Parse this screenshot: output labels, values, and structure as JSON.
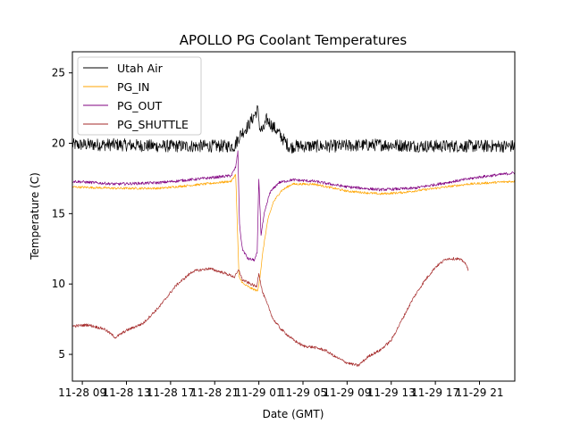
{
  "chart_data": {
    "type": "line",
    "title": "APOLLO PG Coolant Temperatures",
    "xlabel": "Date (GMT)",
    "ylabel": "Temperature (C)",
    "x_unit": "hours since 11-28 00:00 GMT",
    "xlim": [
      8.1,
      48.2
    ],
    "ylim": [
      3.1,
      26.5
    ],
    "grid": false,
    "legend_position": "top-left",
    "x_ticks": [
      {
        "value": 9,
        "label": "11-28 09"
      },
      {
        "value": 13,
        "label": "11-28 13"
      },
      {
        "value": 17,
        "label": "11-28 17"
      },
      {
        "value": 21,
        "label": "11-28 21"
      },
      {
        "value": 25,
        "label": "11-29 01"
      },
      {
        "value": 29,
        "label": "11-29 05"
      },
      {
        "value": 33,
        "label": "11-29 09"
      },
      {
        "value": 37,
        "label": "11-29 13"
      },
      {
        "value": 41,
        "label": "11-29 17"
      },
      {
        "value": 45,
        "label": "11-29 21"
      }
    ],
    "y_ticks": [
      {
        "value": 5,
        "label": "5"
      },
      {
        "value": 10,
        "label": "10"
      },
      {
        "value": 15,
        "label": "15"
      },
      {
        "value": 20,
        "label": "20"
      },
      {
        "value": 25,
        "label": "25"
      }
    ],
    "series": [
      {
        "name": "Utah Air",
        "color": "#000000",
        "noise": 0.45,
        "points": [
          [
            8.1,
            19.9
          ],
          [
            12,
            19.9
          ],
          [
            16,
            19.8
          ],
          [
            20,
            19.8
          ],
          [
            22.8,
            19.8
          ],
          [
            23.3,
            20.6
          ],
          [
            24,
            21.2
          ],
          [
            24.6,
            22.0
          ],
          [
            24.9,
            22.4
          ],
          [
            25.1,
            21.0
          ],
          [
            25.4,
            20.9
          ],
          [
            25.7,
            21.7
          ],
          [
            26.5,
            21.0
          ],
          [
            27.2,
            20.3
          ],
          [
            27.8,
            19.7
          ],
          [
            28.3,
            19.8
          ],
          [
            32,
            19.8
          ],
          [
            36,
            19.9
          ],
          [
            40,
            19.8
          ],
          [
            44,
            19.8
          ],
          [
            48.2,
            19.8
          ]
        ]
      },
      {
        "name": "PG_IN",
        "color": "#FFA500",
        "noise": 0.08,
        "points": [
          [
            8.1,
            16.9
          ],
          [
            12,
            16.8
          ],
          [
            16,
            16.8
          ],
          [
            20,
            17.1
          ],
          [
            22.5,
            17.3
          ],
          [
            22.9,
            17.8
          ],
          [
            23.2,
            10.5
          ],
          [
            23.6,
            10.0
          ],
          [
            24.3,
            9.7
          ],
          [
            24.9,
            9.5
          ],
          [
            25.1,
            10.5
          ],
          [
            25.4,
            12.5
          ],
          [
            25.8,
            14.5
          ],
          [
            26.3,
            15.8
          ],
          [
            27,
            16.6
          ],
          [
            28,
            17.1
          ],
          [
            30,
            17.1
          ],
          [
            33,
            16.6
          ],
          [
            36,
            16.4
          ],
          [
            38,
            16.5
          ],
          [
            41,
            16.8
          ],
          [
            44,
            17.1
          ],
          [
            48.2,
            17.3
          ]
        ]
      },
      {
        "name": "PG_OUT",
        "color": "#800080",
        "noise": 0.1,
        "points": [
          [
            8.1,
            17.3
          ],
          [
            12,
            17.1
          ],
          [
            16,
            17.2
          ],
          [
            20,
            17.5
          ],
          [
            22.5,
            17.7
          ],
          [
            22.9,
            18.3
          ],
          [
            23.1,
            19.4
          ],
          [
            23.25,
            14.2
          ],
          [
            23.5,
            12.5
          ],
          [
            24,
            11.8
          ],
          [
            24.6,
            11.7
          ],
          [
            24.85,
            12.2
          ],
          [
            25.0,
            17.5
          ],
          [
            25.2,
            13.5
          ],
          [
            25.5,
            15.0
          ],
          [
            26,
            16.5
          ],
          [
            26.8,
            17.2
          ],
          [
            28,
            17.4
          ],
          [
            30,
            17.3
          ],
          [
            33,
            16.9
          ],
          [
            36,
            16.7
          ],
          [
            39,
            16.8
          ],
          [
            42,
            17.2
          ],
          [
            45,
            17.6
          ],
          [
            48.2,
            17.9
          ]
        ]
      },
      {
        "name": "PG_SHUTTLE",
        "color": "#A52A2A",
        "noise": 0.1,
        "points": [
          [
            8.1,
            7.0
          ],
          [
            9.5,
            7.1
          ],
          [
            11,
            6.8
          ],
          [
            12,
            6.2
          ],
          [
            13,
            6.7
          ],
          [
            14.5,
            7.2
          ],
          [
            16,
            8.4
          ],
          [
            17.5,
            9.9
          ],
          [
            19,
            10.9
          ],
          [
            20.5,
            11.1
          ],
          [
            21.8,
            10.8
          ],
          [
            22.8,
            10.5
          ],
          [
            23.2,
            11.0
          ],
          [
            23.5,
            10.3
          ],
          [
            24,
            10.1
          ],
          [
            24.8,
            9.8
          ],
          [
            25.0,
            10.8
          ],
          [
            25.3,
            9.5
          ],
          [
            25.8,
            8.5
          ],
          [
            26.3,
            7.5
          ],
          [
            27,
            6.8
          ],
          [
            28,
            6.1
          ],
          [
            29,
            5.6
          ],
          [
            30,
            5.5
          ],
          [
            31,
            5.3
          ],
          [
            32,
            4.8
          ],
          [
            33,
            4.4
          ],
          [
            34,
            4.2
          ],
          [
            35,
            4.9
          ],
          [
            36,
            5.3
          ],
          [
            37,
            6.0
          ],
          [
            38,
            7.5
          ],
          [
            39,
            9.0
          ],
          [
            40,
            10.2
          ],
          [
            41,
            11.2
          ],
          [
            42,
            11.8
          ],
          [
            43,
            11.8
          ],
          [
            43.6,
            11.6
          ],
          [
            44.0,
            11.0
          ]
        ]
      }
    ]
  }
}
